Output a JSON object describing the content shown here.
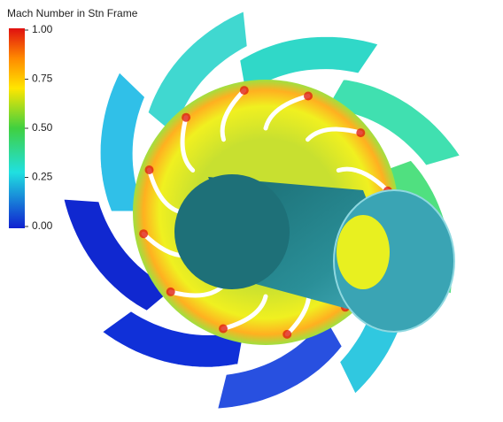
{
  "legend": {
    "title": "Mach Number in Stn Frame",
    "ticks": [
      {
        "value": 1,
        "label": "1.00"
      },
      {
        "value": 0.75,
        "label": "0.75"
      },
      {
        "value": 0.5,
        "label": "0.50"
      },
      {
        "value": 0.25,
        "label": "0.25"
      },
      {
        "value": 0,
        "label": "0.00"
      }
    ]
  }
}
